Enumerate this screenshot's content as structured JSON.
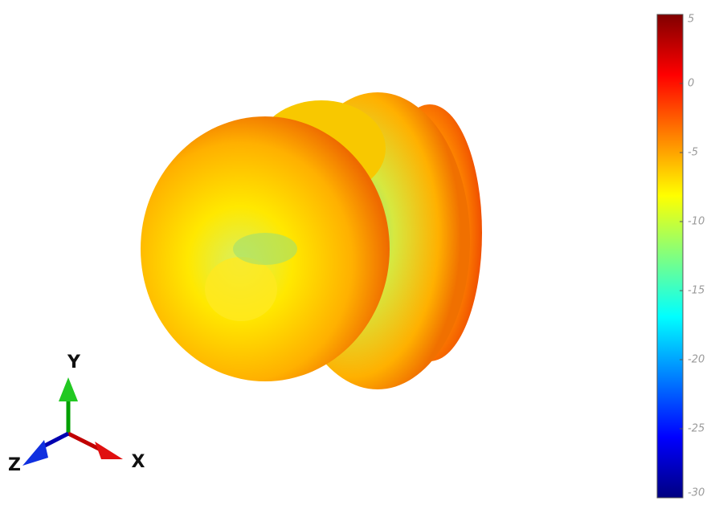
{
  "chart_data": {
    "type": "colorbar",
    "clim": [
      -30,
      5
    ],
    "cticks": [
      5,
      0,
      -5,
      -10,
      -15,
      -20,
      -25,
      -30
    ],
    "colormap": [
      "#800000",
      "#ff0000",
      "#ff8000",
      "#ffff00",
      "#80ff80",
      "#00ffff",
      "#0080ff",
      "#0000ff",
      "#000080"
    ],
    "axes": {
      "x": "X",
      "y": "Y",
      "z": "Z"
    }
  }
}
